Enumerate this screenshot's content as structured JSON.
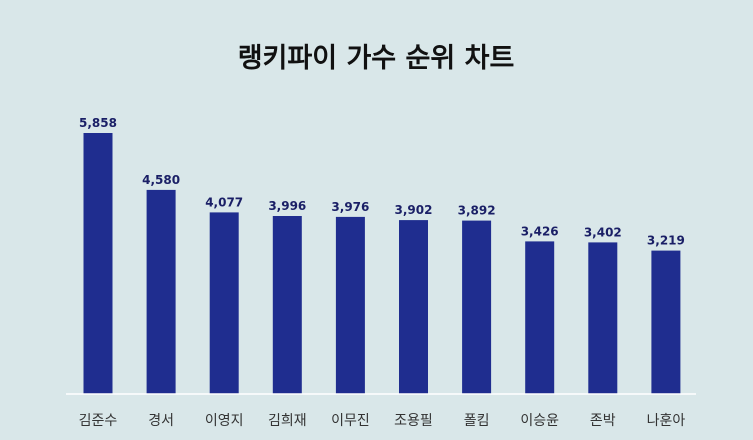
{
  "chart_data": {
    "type": "bar",
    "title": "랭키파이 가수 순위 차트",
    "categories": [
      "김준수",
      "경서",
      "이영지",
      "김희재",
      "이무진",
      "조용필",
      "폴킴",
      "이승윤",
      "존박",
      "나훈아"
    ],
    "values": [
      5858,
      4580,
      4077,
      3996,
      3976,
      3902,
      3892,
      3426,
      3402,
      3219
    ],
    "value_labels": [
      "5,858",
      "4,580",
      "4,077",
      "3,996",
      "3,976",
      "3,902",
      "3,892",
      "3,426",
      "3,402",
      "3,219"
    ],
    "xlabel": "",
    "ylabel": "",
    "ylim": [
      0,
      6000
    ],
    "grid": false,
    "legend": "none"
  },
  "colors": {
    "background": "#d9e7e9",
    "bar": "#1f2d8f",
    "value_label": "#1a1f66",
    "baseline": "#ffffff"
  }
}
